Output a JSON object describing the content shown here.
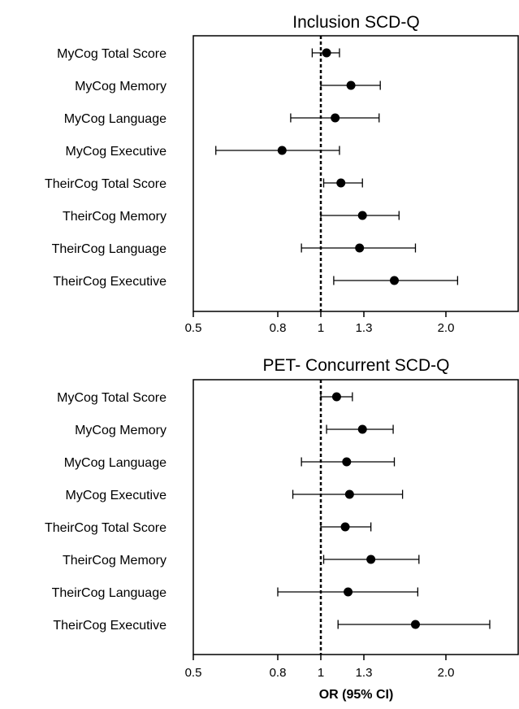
{
  "chart_data": [
    {
      "type": "forest",
      "title": "Inclusion SCD-Q",
      "xlabel": "",
      "xlim": [
        0.5,
        2.5
      ],
      "x_ticks": [
        "0.5",
        "0.8",
        "1",
        "1.3",
        "2.0"
      ],
      "reference_line": 1,
      "categories": [
        "MyCog Total Score",
        "MyCog Memory",
        "MyCog Language",
        "MyCog Executive",
        "TheirCog Total Score",
        "TheirCog Memory",
        "TheirCog Language",
        "TheirCog Executive"
      ],
      "estimates": [
        1.04,
        1.21,
        1.1,
        0.82,
        1.14,
        1.29,
        1.27,
        1.56
      ],
      "lower": [
        0.96,
        1.0,
        0.86,
        0.58,
        1.02,
        1.0,
        0.91,
        1.09
      ],
      "upper": [
        1.13,
        1.44,
        1.43,
        1.13,
        1.29,
        1.6,
        1.74,
        2.08
      ]
    },
    {
      "type": "forest",
      "title": "PET- Concurrent SCD-Q",
      "xlabel": "OR (95%  CI)",
      "xlim": [
        0.5,
        2.5
      ],
      "x_ticks": [
        "0.5",
        "0.8",
        "1",
        "1.3",
        "2.0"
      ],
      "reference_line": 1,
      "categories": [
        "MyCog Total Score",
        "MyCog Memory",
        "MyCog Language",
        "MyCog Executive",
        "TheirCog Total Score",
        "TheirCog Memory",
        "TheirCog Language",
        "TheirCog Executive"
      ],
      "estimates": [
        1.11,
        1.29,
        1.18,
        1.2,
        1.17,
        1.36,
        1.19,
        1.74
      ],
      "lower": [
        1.0,
        1.04,
        0.91,
        0.87,
        1.0,
        1.02,
        0.8,
        1.12
      ],
      "upper": [
        1.22,
        1.55,
        1.56,
        1.63,
        1.36,
        1.77,
        1.76,
        2.3
      ]
    }
  ]
}
